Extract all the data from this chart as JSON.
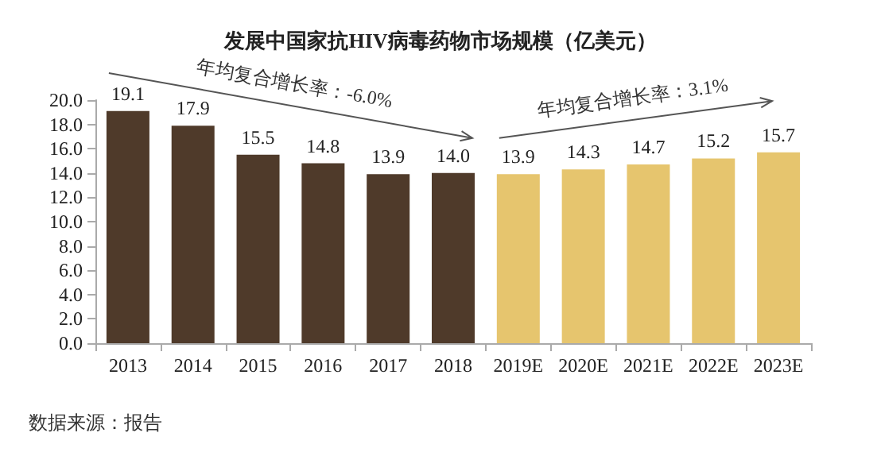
{
  "chart_data": {
    "type": "bar",
    "title": "发展中国家抗HIV病毒药物市场规模（亿美元）",
    "categories": [
      "2013",
      "2014",
      "2015",
      "2016",
      "2017",
      "2018",
      "2019E",
      "2020E",
      "2021E",
      "2022E",
      "2023E"
    ],
    "values": [
      19.1,
      17.9,
      15.5,
      14.8,
      13.9,
      14.0,
      13.9,
      14.3,
      14.7,
      15.2,
      15.7
    ],
    "value_labels": [
      "19.1",
      "17.9",
      "15.5",
      "14.8",
      "13.9",
      "14.0",
      "13.9",
      "14.3",
      "14.7",
      "15.2",
      "15.7"
    ],
    "colors": [
      "#4f3a2a",
      "#4f3a2a",
      "#4f3a2a",
      "#4f3a2a",
      "#4f3a2a",
      "#4f3a2a",
      "#e6c56e",
      "#e6c56e",
      "#e6c56e",
      "#e6c56e",
      "#e6c56e"
    ],
    "ylim": [
      0,
      20
    ],
    "yticks": [
      {
        "value": 0,
        "label": "0.0"
      },
      {
        "value": 2,
        "label": "2.0"
      },
      {
        "value": 4,
        "label": "4.0"
      },
      {
        "value": 6,
        "label": "6.0"
      },
      {
        "value": 8,
        "label": "8.0"
      },
      {
        "value": 10,
        "label": "10.0"
      },
      {
        "value": 12,
        "label": "12.0"
      },
      {
        "value": 14,
        "label": "14.0"
      },
      {
        "value": 16,
        "label": "16.0"
      },
      {
        "value": 18,
        "label": "18.0"
      },
      {
        "value": 20,
        "label": "20.0"
      }
    ],
    "grid": false,
    "annotations": [
      "年均复合增长率：-6.0%",
      "年均复合增长率：3.1%",
      "数据来源：报告"
    ]
  }
}
